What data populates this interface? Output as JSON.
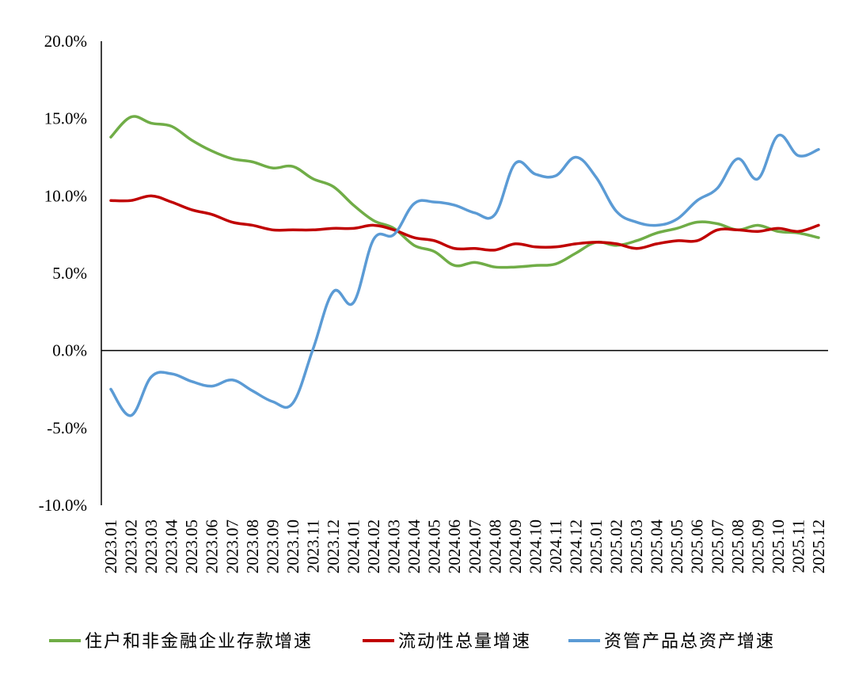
{
  "chart_data": {
    "type": "line",
    "title": "",
    "xlabel": "",
    "ylabel": "",
    "ylim": [
      -10,
      20
    ],
    "yticks": [
      -10,
      -5,
      0,
      5,
      10,
      15,
      20
    ],
    "ytick_labels": [
      "-10.0%",
      "-5.0%",
      "0.0%",
      "5.0%",
      "10.0%",
      "15.0%",
      "20.0%"
    ],
    "grid": false,
    "legend_position": "bottom",
    "categories": [
      "2023.01",
      "2023.02",
      "2023.03",
      "2023.04",
      "2023.05",
      "2023.06",
      "2023.07",
      "2023.08",
      "2023.09",
      "2023.10",
      "2023.11",
      "2023.12",
      "2024.01",
      "2024.02",
      "2024.03",
      "2024.04",
      "2024.05",
      "2024.06",
      "2024.07",
      "2024.08",
      "2024.09",
      "2024.10",
      "2024.11",
      "2024.12",
      "2025.01",
      "2025.02",
      "2025.03",
      "2025.04",
      "2025.05",
      "2025.06",
      "2025.07",
      "2025.08",
      "2025.09",
      "2025.10",
      "2025.11",
      "2025.12"
    ],
    "series": [
      {
        "name": "住户和非金融企业存款增速",
        "color": "#70AD47",
        "values": [
          13.8,
          15.1,
          14.7,
          14.5,
          13.6,
          12.9,
          12.4,
          12.2,
          11.8,
          11.9,
          11.1,
          10.6,
          9.4,
          8.4,
          7.9,
          6.8,
          6.4,
          5.5,
          5.7,
          5.4,
          5.4,
          5.5,
          5.6,
          6.3,
          7.0,
          6.8,
          7.1,
          7.6,
          7.9,
          8.3,
          8.2,
          7.8,
          8.1,
          7.7,
          7.6,
          7.3
        ]
      },
      {
        "name": "流动性总量增速",
        "color": "#C00000",
        "values": [
          9.7,
          9.7,
          10.0,
          9.6,
          9.1,
          8.8,
          8.3,
          8.1,
          7.8,
          7.8,
          7.8,
          7.9,
          7.9,
          8.1,
          7.8,
          7.3,
          7.1,
          6.6,
          6.6,
          6.5,
          6.9,
          6.7,
          6.7,
          6.9,
          7.0,
          6.9,
          6.6,
          6.9,
          7.1,
          7.1,
          7.8,
          7.8,
          7.7,
          7.9,
          7.7,
          8.1
        ]
      },
      {
        "name": "资管产品总资产增速",
        "color": "#5B9BD5",
        "values": [
          -2.5,
          -4.2,
          -1.7,
          -1.5,
          -2.0,
          -2.3,
          -1.9,
          -2.6,
          -3.3,
          -3.4,
          0.1,
          3.8,
          3.1,
          7.2,
          7.5,
          9.5,
          9.6,
          9.4,
          8.9,
          8.8,
          12.1,
          11.4,
          11.3,
          12.5,
          11.2,
          9.0,
          8.3,
          8.1,
          8.5,
          9.7,
          10.5,
          12.4,
          11.1,
          13.9,
          12.6,
          13.0
        ]
      }
    ]
  }
}
